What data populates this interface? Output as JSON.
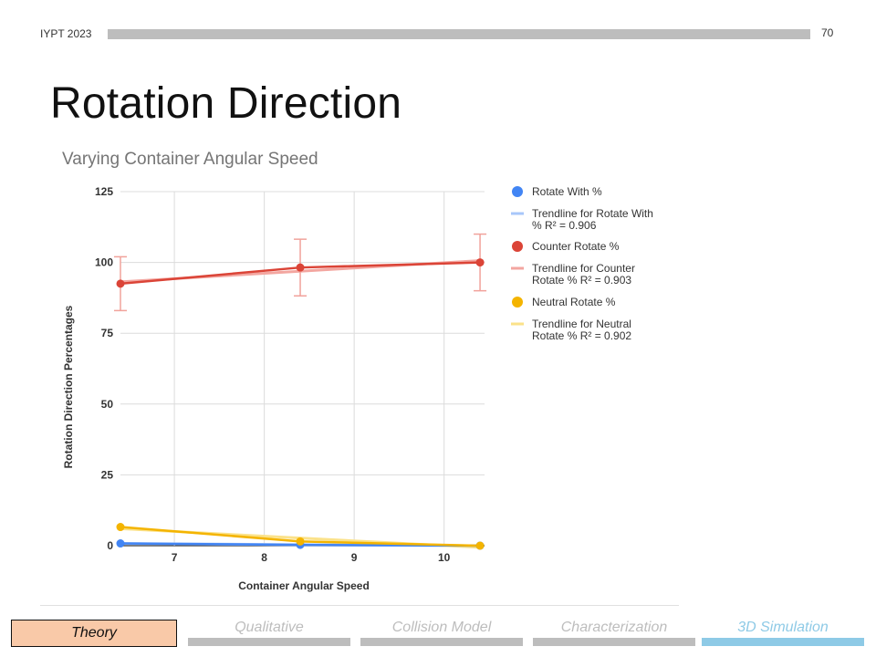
{
  "header": {
    "conference": "IYPT 2023",
    "page_number": "70"
  },
  "slide": {
    "title": "Rotation Direction"
  },
  "chart_data": {
    "type": "scatter",
    "title": "Varying Container Angular Speed",
    "xlabel": "Container Angular Speed",
    "ylabel": "Rotation Direction Percentages",
    "xlim": [
      6.4,
      10.45
    ],
    "ylim": [
      0,
      125
    ],
    "x_ticks": [
      "7",
      "8",
      "9",
      "10"
    ],
    "y_ticks": [
      "0",
      "25",
      "50",
      "75",
      "100",
      "125"
    ],
    "grid": true,
    "legend_position": "right",
    "series": [
      {
        "name": "Rotate With %",
        "color": "#4285f4",
        "x": [
          6.4,
          8.4,
          10.4
        ],
        "y": [
          0.8,
          0.3,
          0.0
        ]
      },
      {
        "name": "Counter Rotate %",
        "color": "#db4437",
        "x": [
          6.4,
          8.4,
          10.4
        ],
        "y": [
          92.5,
          98.2,
          100.0
        ],
        "error": [
          9.5,
          10,
          10
        ]
      },
      {
        "name": "Neutral Rotate %",
        "color": "#f4b400",
        "x": [
          6.4,
          8.4,
          10.4
        ],
        "y": [
          6.6,
          1.5,
          0.0
        ]
      }
    ],
    "trendlines": [
      {
        "label_line1": "Trendline for Rotate With",
        "label_line2": "% R² = 0.906",
        "color": "#a8c7fa"
      },
      {
        "label_line1": "Trendline for Counter",
        "label_line2": "Rotate % R² = 0.903",
        "color": "#f3a6a0"
      },
      {
        "label_line1": "Trendline for Neutral",
        "label_line2": "Rotate % R² = 0.902",
        "color": "#fbe28a"
      }
    ]
  },
  "footer": {
    "nav": [
      {
        "label": "Theory",
        "active": true
      },
      {
        "label": "Qualitative",
        "color": "#bdbdbd"
      },
      {
        "label": "Collision Model",
        "color": "#bdbdbd"
      },
      {
        "label": "Characterization",
        "color": "#bdbdbd"
      },
      {
        "label": "3D Simulation",
        "color": "#8ecae6"
      }
    ]
  }
}
